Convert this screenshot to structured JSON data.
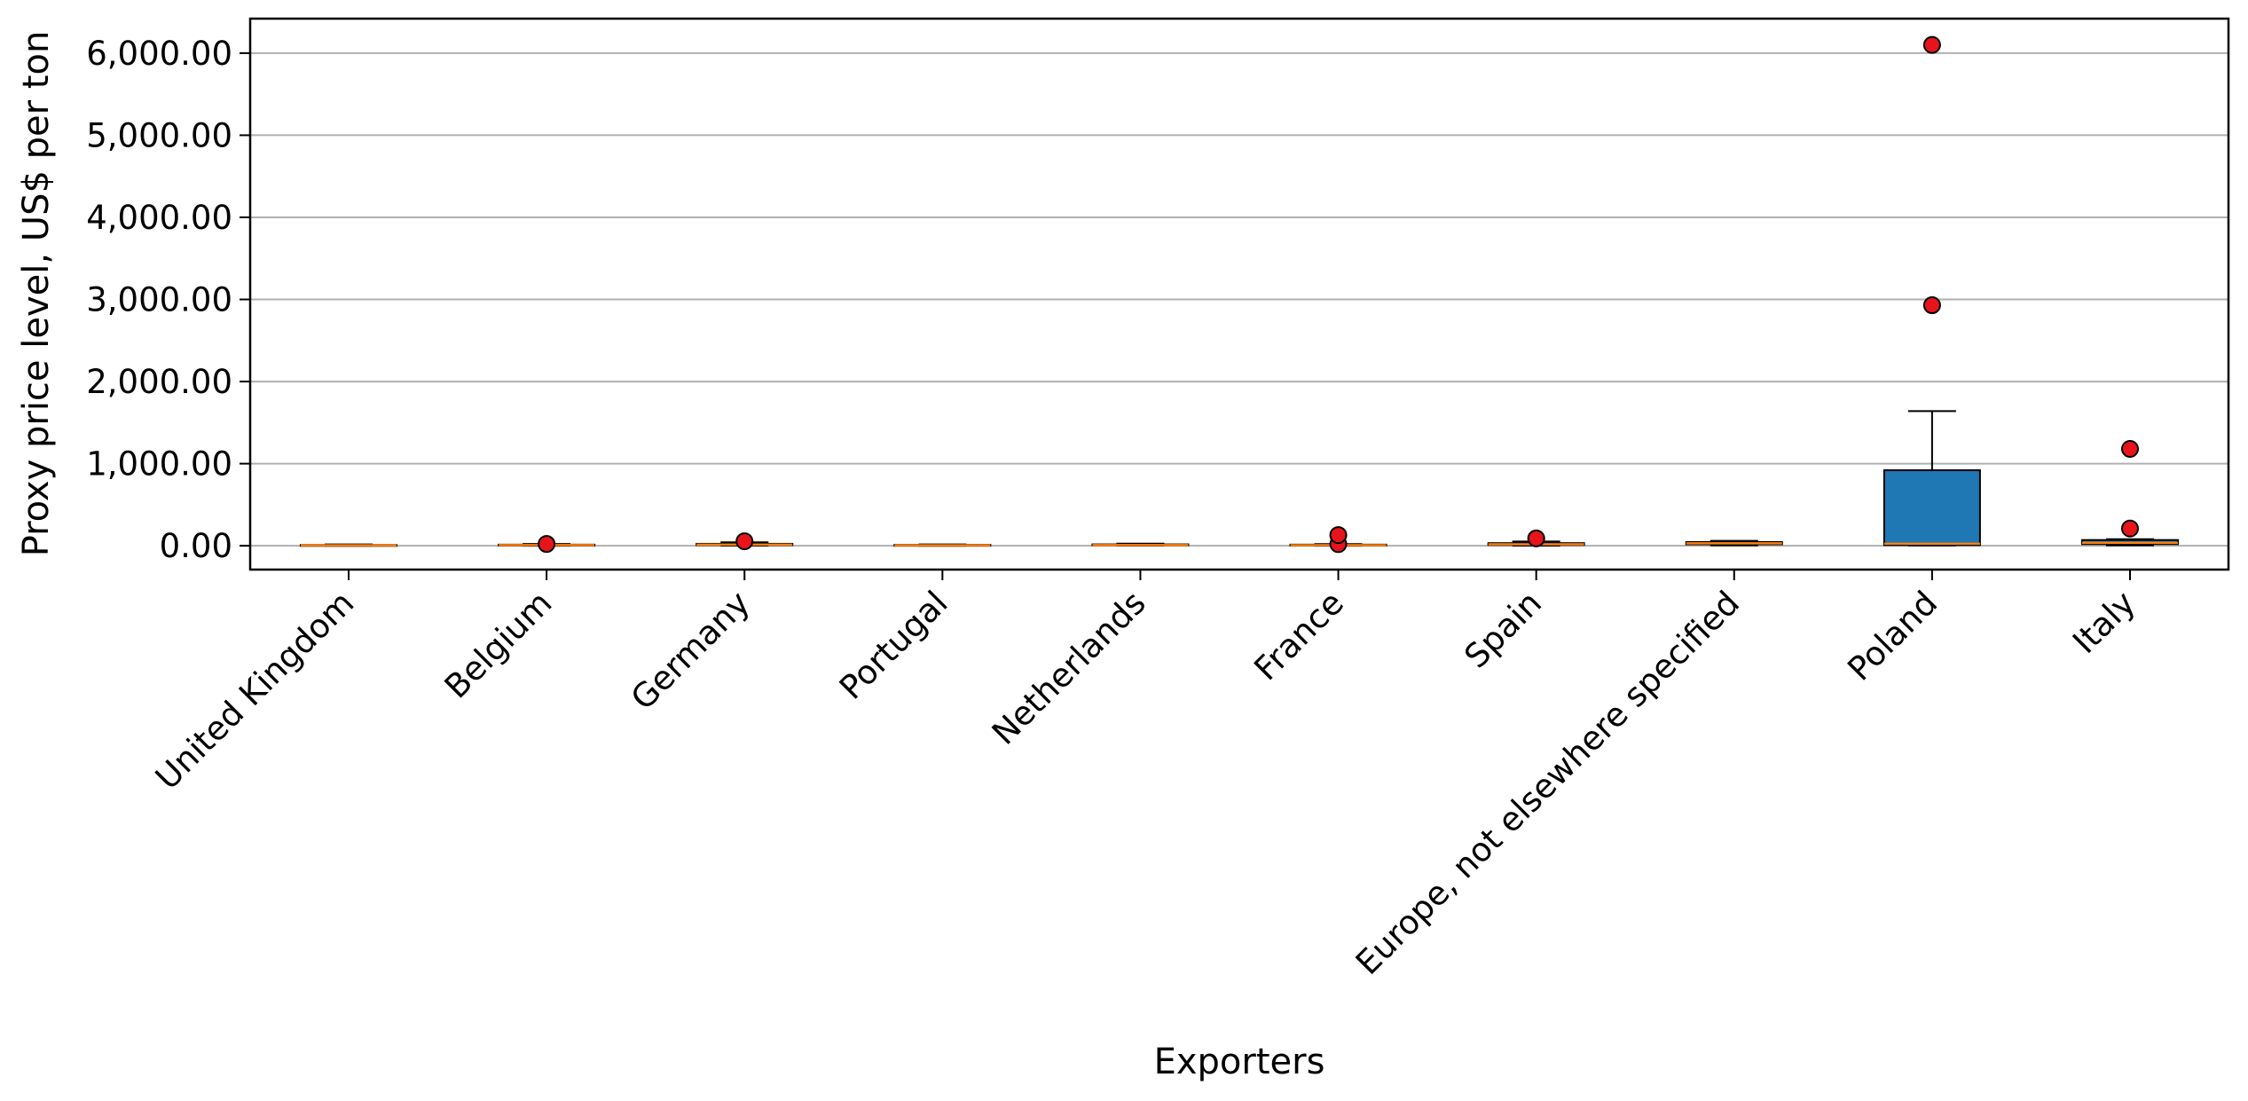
{
  "chart_data": {
    "type": "box",
    "title": "",
    "xlabel": "Exporters",
    "ylabel": "Proxy price level, US$ per ton",
    "ylim": [
      -290,
      6420
    ],
    "yticks": [
      0,
      1000,
      2000,
      3000,
      4000,
      5000,
      6000
    ],
    "ytick_labels": [
      "0.00",
      "1,000.00",
      "2,000.00",
      "3,000.00",
      "4,000.00",
      "5,000.00",
      "6,000.00"
    ],
    "grid": "horizontal",
    "legend": "none",
    "colors": {
      "box": "#1f77b4",
      "median": "#ff7f0e",
      "outlier": "#e8141b",
      "edge": "#000000",
      "grid": "#b0b0b0"
    },
    "categories": [
      "United Kingdom",
      "Belgium",
      "Germany",
      "Portugal",
      "Netherlands",
      "France",
      "Spain",
      "Europe, not elsewhere specified",
      "Poland",
      "Italy"
    ],
    "boxes": [
      {
        "whislo": 1,
        "q1": 3,
        "med": 6,
        "q3": 10,
        "whishi": 16,
        "fliers": []
      },
      {
        "whislo": 0,
        "q1": 4,
        "med": 8,
        "q3": 14,
        "whishi": 22,
        "fliers": [
          22
        ]
      },
      {
        "whislo": 2,
        "q1": 8,
        "med": 14,
        "q3": 24,
        "whishi": 42,
        "fliers": [
          55
        ]
      },
      {
        "whislo": 1,
        "q1": 3,
        "med": 6,
        "q3": 11,
        "whishi": 16,
        "fliers": []
      },
      {
        "whislo": 2,
        "q1": 5,
        "med": 9,
        "q3": 17,
        "whishi": 26,
        "fliers": []
      },
      {
        "whislo": 0,
        "q1": 3,
        "med": 7,
        "q3": 14,
        "whishi": 20,
        "fliers": [
          20,
          130
        ]
      },
      {
        "whislo": 2,
        "q1": 10,
        "med": 18,
        "q3": 32,
        "whishi": 52,
        "fliers": [
          90
        ]
      },
      {
        "whislo": 5,
        "q1": 18,
        "med": 30,
        "q3": 45,
        "whishi": 60,
        "fliers": []
      },
      {
        "whislo": 3,
        "q1": 8,
        "med": 25,
        "q3": 920,
        "whishi": 1640,
        "fliers": [
          2930,
          6100
        ]
      },
      {
        "whislo": 5,
        "q1": 20,
        "med": 35,
        "q3": 70,
        "whishi": 80,
        "fliers": [
          210,
          1180
        ]
      }
    ]
  }
}
